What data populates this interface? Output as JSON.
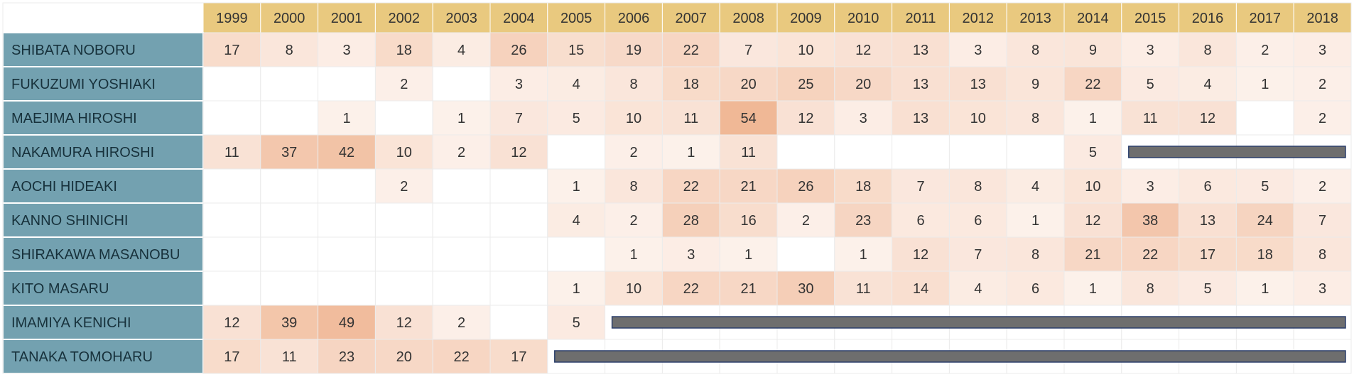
{
  "chart_data": {
    "type": "heatmap",
    "x": [
      "1999",
      "2000",
      "2001",
      "2002",
      "2003",
      "2004",
      "2005",
      "2006",
      "2007",
      "2008",
      "2009",
      "2010",
      "2011",
      "2012",
      "2013",
      "2014",
      "2015",
      "2016",
      "2017",
      "2018"
    ],
    "rows": [
      {
        "name": "SHIBATA NOBORU",
        "values": [
          17,
          8,
          3,
          18,
          4,
          26,
          15,
          19,
          22,
          7,
          10,
          12,
          13,
          3,
          8,
          9,
          3,
          8,
          2,
          3
        ],
        "bar_from": null
      },
      {
        "name": "FUKUZUMI YOSHIAKI",
        "values": [
          null,
          null,
          null,
          2,
          null,
          3,
          4,
          8,
          18,
          20,
          25,
          20,
          13,
          13,
          9,
          22,
          5,
          4,
          1,
          2
        ],
        "bar_from": null
      },
      {
        "name": "MAEJIMA HIROSHI",
        "values": [
          null,
          null,
          1,
          null,
          1,
          7,
          5,
          10,
          11,
          54,
          12,
          3,
          13,
          10,
          8,
          1,
          11,
          12,
          null,
          2
        ],
        "bar_from": null
      },
      {
        "name": "NAKAMURA HIROSHI",
        "values": [
          11,
          37,
          42,
          10,
          2,
          12,
          null,
          2,
          1,
          11,
          null,
          null,
          null,
          null,
          null,
          5,
          null,
          null,
          null,
          null
        ],
        "bar_from": "2015"
      },
      {
        "name": "AOCHI HIDEAKI",
        "values": [
          null,
          null,
          null,
          2,
          null,
          null,
          1,
          8,
          22,
          21,
          26,
          18,
          7,
          8,
          4,
          10,
          3,
          6,
          5,
          2
        ],
        "bar_from": null
      },
      {
        "name": "KANNO SHINICHI",
        "values": [
          null,
          null,
          null,
          null,
          null,
          null,
          4,
          2,
          28,
          16,
          2,
          23,
          6,
          6,
          1,
          12,
          38,
          13,
          24,
          7
        ],
        "bar_from": null
      },
      {
        "name": "SHIRAKAWA MASANOBU",
        "values": [
          null,
          null,
          null,
          null,
          null,
          null,
          null,
          1,
          3,
          1,
          null,
          1,
          12,
          7,
          8,
          21,
          22,
          17,
          18,
          8
        ],
        "bar_from": null
      },
      {
        "name": "KITO MASARU",
        "values": [
          null,
          null,
          null,
          null,
          null,
          null,
          1,
          10,
          22,
          21,
          30,
          11,
          14,
          4,
          6,
          1,
          8,
          5,
          1,
          3
        ],
        "bar_from": null
      },
      {
        "name": "IMAMIYA KENICHI",
        "values": [
          12,
          39,
          49,
          12,
          2,
          null,
          5,
          null,
          null,
          null,
          null,
          null,
          null,
          null,
          null,
          null,
          null,
          null,
          null,
          null
        ],
        "bar_from": "2006"
      },
      {
        "name": "TANAKA TOMOHARU",
        "values": [
          17,
          11,
          23,
          20,
          22,
          17,
          null,
          null,
          null,
          null,
          null,
          null,
          null,
          null,
          null,
          null,
          null,
          null,
          null,
          null
        ],
        "bar_from": "2005"
      }
    ],
    "max_value": 54,
    "colors": {
      "header_bg": "#e9c97f",
      "name_bg": "#73a1b0",
      "cell_low": "#fdf3ee",
      "cell_high": "#f0b896",
      "gridline": "#ebebeb",
      "bar_fill": "#6e6e6e",
      "bar_stroke": "#2b3f6b"
    },
    "grid": true,
    "legend": "none"
  }
}
